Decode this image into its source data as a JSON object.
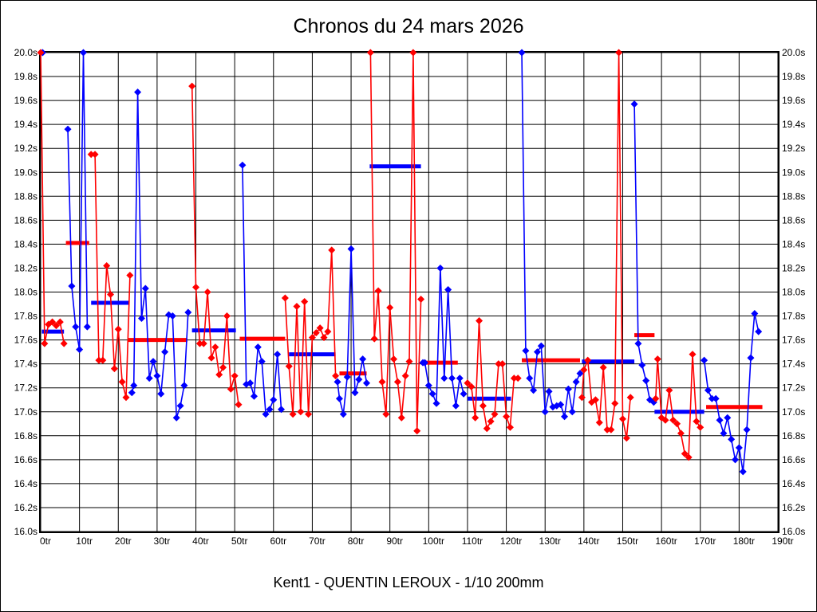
{
  "title": "Chronos du 24 mars 2026",
  "footer": "Kent1 - QUENTIN LEROUX - 1/10 200mm",
  "chart_data": {
    "type": "line",
    "title": "Chronos du 24 mars 2026",
    "subtitle": "Kent1 - QUENTIN LEROUX - 1/10 200mm",
    "grid": true,
    "legend": "none",
    "x_axis": {
      "label_suffix": "tr",
      "min": 0,
      "max": 190,
      "step": 10,
      "tick_labels": [
        "0tr",
        "10tr",
        "20tr",
        "30tr",
        "40tr",
        "50tr",
        "60tr",
        "70tr",
        "80tr",
        "90tr",
        "100tr",
        "110tr",
        "120tr",
        "130tr",
        "140tr",
        "150tr",
        "160tr",
        "170tr",
        "180tr",
        "190tr"
      ]
    },
    "y_axis": {
      "unit": "s",
      "min": 16.0,
      "max": 20.0,
      "step": 0.2,
      "labels_both_sides": true,
      "tick_labels": [
        "20.0s",
        "19.8s",
        "19.6s",
        "19.4s",
        "19.2s",
        "19.0s",
        "18.8s",
        "18.6s",
        "18.4s",
        "18.2s",
        "18.0s",
        "17.8s",
        "17.6s",
        "17.4s",
        "17.2s",
        "17.0s",
        "16.8s",
        "16.6s",
        "16.4s",
        "16.2s",
        "16.0s"
      ]
    },
    "colors": {
      "red": "#ff0000",
      "blue": "#0000ff",
      "grid": "#000000",
      "background": "#ffffff"
    },
    "stints": [
      {
        "color": "blue",
        "points": [
          [
            0.5,
            20.0
          ]
        ]
      },
      {
        "color": "red",
        "points": [
          [
            0,
            20.0
          ],
          [
            1,
            17.57
          ],
          [
            2,
            17.73
          ],
          [
            3,
            17.75
          ],
          [
            4,
            17.72
          ],
          [
            5,
            17.75
          ],
          [
            6,
            17.57
          ]
        ]
      },
      {
        "color": "blue",
        "points": [
          [
            7,
            19.36
          ],
          [
            8,
            18.05
          ],
          [
            9,
            17.71
          ],
          [
            10,
            17.52
          ],
          [
            11,
            20.0
          ],
          [
            12,
            17.71
          ]
        ]
      },
      {
        "color": "red",
        "points": [
          [
            13,
            19.15
          ],
          [
            14,
            19.15
          ],
          [
            15,
            17.43
          ],
          [
            16,
            17.43
          ],
          [
            17,
            18.22
          ],
          [
            18,
            17.98
          ],
          [
            19,
            17.36
          ],
          [
            20,
            17.69
          ],
          [
            21,
            17.25
          ],
          [
            22,
            17.12
          ],
          [
            23,
            18.14
          ]
        ]
      },
      {
        "color": "blue",
        "points": [
          [
            23.5,
            17.16
          ],
          [
            24,
            17.22
          ],
          [
            25,
            19.67
          ],
          [
            26,
            17.78
          ],
          [
            27,
            18.03
          ],
          [
            28,
            17.28
          ],
          [
            29,
            17.42
          ],
          [
            30,
            17.3
          ],
          [
            31,
            17.15
          ],
          [
            32,
            17.5
          ],
          [
            33,
            17.81
          ],
          [
            34,
            17.8
          ],
          [
            35,
            16.95
          ],
          [
            36,
            17.05
          ],
          [
            37,
            17.22
          ],
          [
            38,
            17.83
          ]
        ]
      },
      {
        "color": "red",
        "points": [
          [
            39,
            19.72
          ],
          [
            40,
            18.04
          ],
          [
            41,
            17.57
          ],
          [
            42,
            17.57
          ],
          [
            43,
            18.0
          ],
          [
            44,
            17.45
          ],
          [
            45,
            17.54
          ],
          [
            46,
            17.31
          ],
          [
            47,
            17.37
          ],
          [
            48,
            17.8
          ],
          [
            49,
            17.19
          ],
          [
            50,
            17.3
          ],
          [
            51,
            17.06
          ]
        ]
      },
      {
        "color": "blue",
        "points": [
          [
            52,
            19.06
          ],
          [
            53,
            17.23
          ],
          [
            54,
            17.24
          ],
          [
            55,
            17.13
          ],
          [
            56,
            17.54
          ],
          [
            57,
            17.42
          ],
          [
            58,
            16.98
          ],
          [
            59,
            17.02
          ],
          [
            60,
            17.1
          ],
          [
            61,
            17.48
          ],
          [
            62,
            17.02
          ]
        ]
      },
      {
        "color": "red",
        "points": [
          [
            63,
            17.95
          ],
          [
            64,
            17.38
          ],
          [
            65,
            16.98
          ],
          [
            66,
            17.88
          ],
          [
            67,
            17.0
          ],
          [
            68,
            17.92
          ],
          [
            69,
            16.98
          ],
          [
            70,
            17.62
          ],
          [
            71,
            17.66
          ],
          [
            72,
            17.7
          ],
          [
            73,
            17.62
          ],
          [
            74,
            17.67
          ],
          [
            75,
            18.35
          ],
          [
            76,
            17.3
          ]
        ]
      },
      {
        "color": "blue",
        "points": [
          [
            76.5,
            17.25
          ],
          [
            77,
            17.11
          ],
          [
            78,
            16.98
          ],
          [
            79,
            17.29
          ],
          [
            80,
            18.36
          ],
          [
            81,
            17.16
          ],
          [
            82,
            17.27
          ],
          [
            83,
            17.44
          ],
          [
            84,
            17.24
          ]
        ]
      },
      {
        "color": "red",
        "points": [
          [
            85,
            20.0
          ],
          [
            86,
            17.61
          ],
          [
            87,
            18.01
          ],
          [
            88,
            17.25
          ],
          [
            89,
            16.98
          ],
          [
            90,
            17.87
          ],
          [
            91,
            17.44
          ],
          [
            92,
            17.25
          ],
          [
            93,
            16.95
          ],
          [
            94,
            17.3
          ],
          [
            95,
            17.42
          ],
          [
            96,
            20.0
          ],
          [
            97,
            16.84
          ],
          [
            98,
            17.94
          ]
        ]
      },
      {
        "color": "blue",
        "points": [
          [
            98.5,
            17.41
          ],
          [
            99,
            17.41
          ],
          [
            100,
            17.22
          ],
          [
            101,
            17.15
          ],
          [
            102,
            17.07
          ],
          [
            103,
            18.2
          ],
          [
            104,
            17.28
          ],
          [
            105,
            18.02
          ],
          [
            106,
            17.28
          ],
          [
            107,
            17.05
          ],
          [
            108,
            17.28
          ],
          [
            109,
            17.15
          ]
        ]
      },
      {
        "color": "red",
        "points": [
          [
            110,
            17.24
          ],
          [
            111,
            17.21
          ],
          [
            112,
            16.95
          ],
          [
            113,
            17.76
          ],
          [
            114,
            17.05
          ],
          [
            115,
            16.86
          ],
          [
            116,
            16.92
          ],
          [
            117,
            16.98
          ],
          [
            118,
            17.4
          ],
          [
            119,
            17.4
          ],
          [
            120,
            16.96
          ],
          [
            121,
            16.87
          ],
          [
            122,
            17.28
          ],
          [
            123,
            17.28
          ]
        ]
      },
      {
        "color": "blue",
        "points": [
          [
            124,
            20.0
          ],
          [
            125,
            17.51
          ],
          [
            126,
            17.28
          ],
          [
            127,
            17.18
          ],
          [
            128,
            17.5
          ],
          [
            129,
            17.55
          ],
          [
            130,
            17.0
          ],
          [
            131,
            17.17
          ],
          [
            132,
            17.04
          ],
          [
            133,
            17.05
          ],
          [
            134,
            17.06
          ],
          [
            135,
            16.96
          ],
          [
            136,
            17.19
          ],
          [
            137,
            17.0
          ],
          [
            138,
            17.25
          ],
          [
            139,
            17.32
          ]
        ]
      },
      {
        "color": "red",
        "points": [
          [
            139.5,
            17.12
          ],
          [
            140,
            17.35
          ],
          [
            141,
            17.43
          ],
          [
            142,
            17.08
          ],
          [
            143,
            17.1
          ],
          [
            144,
            16.91
          ],
          [
            145,
            17.37
          ],
          [
            146,
            16.85
          ],
          [
            147,
            16.85
          ],
          [
            148,
            17.07
          ],
          [
            149,
            20.0
          ],
          [
            150,
            16.94
          ],
          [
            151,
            16.78
          ],
          [
            152,
            17.12
          ]
        ]
      },
      {
        "color": "blue",
        "points": [
          [
            153,
            19.57
          ],
          [
            154,
            17.57
          ],
          [
            155,
            17.39
          ],
          [
            156,
            17.26
          ],
          [
            157,
            17.1
          ],
          [
            158,
            17.08
          ]
        ]
      },
      {
        "color": "red",
        "points": [
          [
            158.5,
            17.11
          ],
          [
            159,
            17.44
          ],
          [
            160,
            16.95
          ],
          [
            161,
            16.93
          ],
          [
            162,
            17.18
          ],
          [
            163,
            16.93
          ],
          [
            164,
            16.9
          ],
          [
            165,
            16.82
          ],
          [
            166,
            16.65
          ],
          [
            167,
            16.62
          ],
          [
            168,
            17.48
          ],
          [
            169,
            16.92
          ],
          [
            170,
            16.87
          ]
        ]
      },
      {
        "color": "blue",
        "points": [
          [
            171,
            17.43
          ],
          [
            172,
            17.18
          ],
          [
            173,
            17.11
          ],
          [
            174,
            17.11
          ],
          [
            175,
            16.93
          ],
          [
            176,
            16.82
          ],
          [
            177,
            16.95
          ],
          [
            178,
            16.77
          ],
          [
            179,
            16.6
          ],
          [
            180,
            16.7
          ],
          [
            181,
            16.5
          ],
          [
            182,
            16.85
          ],
          [
            183,
            17.45
          ],
          [
            184,
            17.82
          ],
          [
            185,
            17.67
          ]
        ]
      }
    ],
    "average_bars": [
      {
        "color": "blue",
        "from": 0.3,
        "to": 6.0,
        "value": 17.67
      },
      {
        "color": "red",
        "from": 6.5,
        "to": 12.5,
        "value": 18.41
      },
      {
        "color": "blue",
        "from": 13.0,
        "to": 22.8,
        "value": 17.91
      },
      {
        "color": "red",
        "from": 22.5,
        "to": 37.8,
        "value": 17.6
      },
      {
        "color": "blue",
        "from": 39.0,
        "to": 50.3,
        "value": 17.68
      },
      {
        "color": "red",
        "from": 51.3,
        "to": 63.0,
        "value": 17.61
      },
      {
        "color": "blue",
        "from": 64.0,
        "to": 76.0,
        "value": 17.48
      },
      {
        "color": "red",
        "from": 77.0,
        "to": 84.0,
        "value": 17.32
      },
      {
        "color": "blue",
        "from": 84.8,
        "to": 98.0,
        "value": 19.05
      },
      {
        "color": "red",
        "from": 98.2,
        "to": 107.5,
        "value": 17.41
      },
      {
        "color": "blue",
        "from": 110.0,
        "to": 121.2,
        "value": 17.11
      },
      {
        "color": "red",
        "from": 124.0,
        "to": 139.0,
        "value": 17.43
      },
      {
        "color": "blue",
        "from": 139.5,
        "to": 153.0,
        "value": 17.42
      },
      {
        "color": "red",
        "from": 153.0,
        "to": 158.2,
        "value": 17.64
      },
      {
        "color": "blue",
        "from": 158.2,
        "to": 171.0,
        "value": 17.0
      },
      {
        "color": "red",
        "from": 171.5,
        "to": 186.0,
        "value": 17.04
      }
    ]
  }
}
